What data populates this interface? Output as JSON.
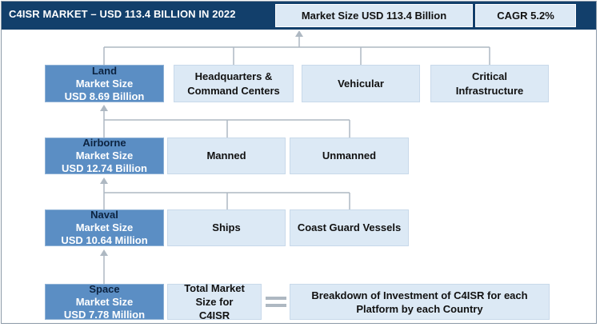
{
  "header": {
    "title": "C4ISR MARKET – USD 113.4 BILLION IN 2022",
    "market_size": "Market Size USD 113.4 Billion",
    "cagr": "CAGR 5.2%"
  },
  "platforms": [
    {
      "name": "Land",
      "label": "Market Size",
      "value": "USD 8.69 Billion",
      "subsegments": [
        "Headquarters & Command Centers",
        "Vehicular",
        "Critical Infrastructure"
      ]
    },
    {
      "name": "Airborne",
      "label": "Market Size",
      "value": "USD 12.74 Billion",
      "subsegments": [
        "Manned",
        "Unmanned"
      ]
    },
    {
      "name": "Naval",
      "label": "Market Size",
      "value": "USD 10.64 Million",
      "subsegments": [
        "Ships",
        "Coast Guard Vessels"
      ]
    },
    {
      "name": "Space",
      "label": "Market Size",
      "value": "USD 7.78 Million"
    }
  ],
  "footer": {
    "total_label": "Total Market Size for C4ISR",
    "breakdown_label": "Breakdown of Investment of C4ISR for each Platform by each Country"
  },
  "colors": {
    "header_bg": "#123f6b",
    "platform_box": "#5b8ec4",
    "subsegment_box": "#dce9f5",
    "connector": "#aeb8c2"
  }
}
